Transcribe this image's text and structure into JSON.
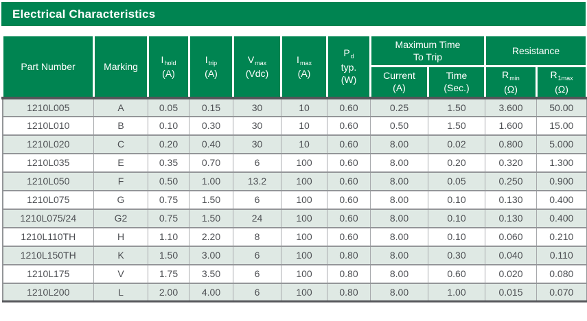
{
  "title": "Electrical Characteristics",
  "colors": {
    "brand_green": "#008451",
    "row_alt": "#dfe9e4",
    "row_plain": "#ffffff",
    "grid_gray": "#939598",
    "dark_border": "#55565a",
    "body_text": "#4d4f53"
  },
  "table": {
    "headers": {
      "part_number": "Part Number",
      "marking": "Marking",
      "i_hold": {
        "sym": "I",
        "sub": "hold",
        "unit": "(A)"
      },
      "i_trip": {
        "sym": "I",
        "sub": "trip",
        "unit": "(A)"
      },
      "v_max": {
        "sym": "V",
        "sub": "max",
        "unit": "(Vdc)"
      },
      "i_max": {
        "sym": "I",
        "sub": "max",
        "unit": "(A)"
      },
      "p_d": {
        "sym": "P",
        "sub": "d",
        "line2": "typ.",
        "unit": "(W)"
      },
      "max_time_group": {
        "line1": "Maximum Time",
        "line2": "To Trip"
      },
      "resistance_group": "Resistance",
      "current": {
        "line1": "Current",
        "unit": "(A)"
      },
      "time": {
        "line1": "Time",
        "unit": "(Sec.)"
      },
      "r_min": {
        "sym": "R",
        "sub": "min",
        "unit": "(Ω)"
      },
      "r_1max": {
        "sym": "R",
        "sub": "1max",
        "unit": "(Ω)"
      }
    },
    "rows": [
      [
        "1210L005",
        "A",
        "0.05",
        "0.15",
        "30",
        "10",
        "0.60",
        "0.25",
        "1.50",
        "3.600",
        "50.00"
      ],
      [
        "1210L010",
        "B",
        "0.10",
        "0.30",
        "30",
        "10",
        "0.60",
        "0.50",
        "1.50",
        "1.600",
        "15.00"
      ],
      [
        "1210L020",
        "C",
        "0.20",
        "0.40",
        "30",
        "10",
        "0.60",
        "8.00",
        "0.02",
        "0.800",
        "5.000"
      ],
      [
        "1210L035",
        "E",
        "0.35",
        "0.70",
        "6",
        "100",
        "0.60",
        "8.00",
        "0.20",
        "0.320",
        "1.300"
      ],
      [
        "1210L050",
        "F",
        "0.50",
        "1.00",
        "13.2",
        "100",
        "0.60",
        "8.00",
        "0.05",
        "0.250",
        "0.900"
      ],
      [
        "1210L075",
        "G",
        "0.75",
        "1.50",
        "6",
        "100",
        "0.60",
        "8.00",
        "0.10",
        "0.130",
        "0.400"
      ],
      [
        "1210L075/24",
        "G2",
        "0.75",
        "1.50",
        "24",
        "100",
        "0.60",
        "8.00",
        "0.10",
        "0.130",
        "0.400"
      ],
      [
        "1210L110TH",
        "H",
        "1.10",
        "2.20",
        "8",
        "100",
        "0.60",
        "8.00",
        "0.10",
        "0.060",
        "0.210"
      ],
      [
        "1210L150TH",
        "K",
        "1.50",
        "3.00",
        "6",
        "100",
        "0.80",
        "8.00",
        "0.30",
        "0.040",
        "0.110"
      ],
      [
        "1210L175",
        "V",
        "1.75",
        "3.50",
        "6",
        "100",
        "0.80",
        "8.00",
        "0.60",
        "0.020",
        "0.080"
      ],
      [
        "1210L200",
        "L",
        "2.00",
        "4.00",
        "6",
        "100",
        "0.80",
        "8.00",
        "1.00",
        "0.015",
        "0.070"
      ]
    ]
  }
}
